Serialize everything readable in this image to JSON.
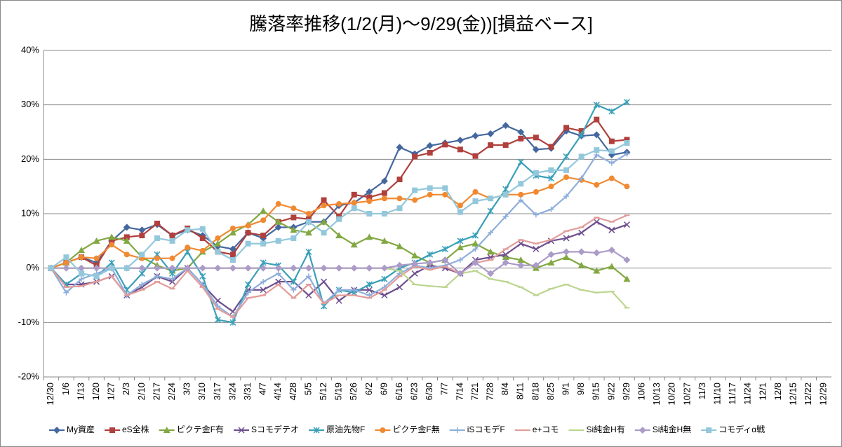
{
  "chart_data": {
    "type": "line",
    "title": "騰落率推移(1/2(月)～9/29(金))[損益ベース]",
    "categories": [
      "12/30",
      "1/6",
      "1/13",
      "1/20",
      "1/27",
      "2/3",
      "2/10",
      "2/17",
      "2/24",
      "3/3",
      "3/10",
      "3/17",
      "3/24",
      "3/31",
      "4/7",
      "4/14",
      "4/28",
      "5/5",
      "5/12",
      "5/19",
      "5/26",
      "6/2",
      "6/9",
      "6/16",
      "6/23",
      "6/30",
      "7/7",
      "7/14",
      "7/21",
      "7/28",
      "8/4",
      "8/11",
      "8/18",
      "8/25",
      "9/1",
      "9/8",
      "9/15",
      "9/22",
      "9/29",
      "10/6",
      "10/13",
      "10/20",
      "10/27",
      "11/3",
      "11/10",
      "11/17",
      "11/24",
      "12/1",
      "12/8",
      "12/15",
      "12/22",
      "12/29"
    ],
    "ylim": [
      -20,
      40
    ],
    "yticks": [
      {
        "value": -20,
        "label": "-20%"
      },
      {
        "value": -10,
        "label": "-10%"
      },
      {
        "value": 0,
        "label": "0%"
      },
      {
        "value": 10,
        "label": "10%"
      },
      {
        "value": 20,
        "label": "20%"
      },
      {
        "value": 30,
        "label": "30%"
      },
      {
        "value": 40,
        "label": "40%"
      }
    ],
    "grid": true,
    "legend": "bottom",
    "series": [
      {
        "name": "My資産",
        "color": "#44679e",
        "marker": "diamond",
        "values": [
          0,
          1,
          2,
          1,
          5,
          7.5,
          7,
          8,
          6,
          7,
          6,
          4,
          3.5,
          6.5,
          5.5,
          7.5,
          7.5,
          8.5,
          8.5,
          11.5,
          12,
          14,
          16,
          22.2,
          21,
          22.5,
          23,
          23.5,
          24.3,
          24.7,
          26.2,
          25,
          21.8,
          22,
          25.2,
          24.3,
          24.5,
          20.8,
          21.3,
          null,
          null,
          null,
          null,
          null,
          null,
          null,
          null,
          null,
          null,
          null,
          null,
          null
        ]
      },
      {
        "name": "eS全株",
        "color": "#b0403d",
        "marker": "square",
        "values": [
          0,
          1,
          2,
          0.5,
          5,
          5.7,
          6,
          8.2,
          6,
          7.3,
          5.5,
          3,
          2.5,
          6.5,
          6,
          8.5,
          9.3,
          9,
          12.5,
          9.5,
          13.5,
          13,
          13.8,
          16.3,
          20.5,
          21.2,
          22.7,
          21.8,
          20.6,
          22.6,
          22.6,
          23.8,
          24,
          22.3,
          25.8,
          25.2,
          27.3,
          23.3,
          23.6,
          null,
          null,
          null,
          null,
          null,
          null,
          null,
          null,
          null,
          null,
          null,
          null,
          null
        ]
      },
      {
        "name": "ピクテ金F有",
        "color": "#82a842",
        "marker": "triangle",
        "values": [
          0,
          1,
          3.3,
          5,
          5.7,
          5,
          2,
          0.5,
          -0.5,
          0,
          3,
          4.5,
          6.5,
          8,
          10.5,
          8.5,
          7,
          6.5,
          8.5,
          6,
          4.3,
          5.7,
          5,
          4,
          2.3,
          1,
          1.5,
          3.8,
          4.5,
          3,
          2,
          1.5,
          0,
          1,
          2,
          0.5,
          -0.5,
          0.3,
          -2,
          null,
          null,
          null,
          null,
          null,
          null,
          null,
          null,
          null,
          null,
          null,
          null,
          null
        ]
      },
      {
        "name": "Sコモデテオ",
        "color": "#6e4f8f",
        "marker": "x",
        "values": [
          0,
          -3,
          -3,
          -2.5,
          -1.5,
          -5,
          -3.5,
          -1.5,
          -2.5,
          0,
          -3,
          -6,
          -8,
          -4,
          -4,
          -2.5,
          -2.5,
          -5,
          -2.5,
          -6,
          -4,
          -4,
          -5,
          -3.5,
          -1,
          0.5,
          0,
          -1,
          1.5,
          2,
          2.5,
          4.5,
          3.5,
          5,
          5.5,
          6.5,
          8.5,
          7,
          8,
          null,
          null,
          null,
          null,
          null,
          null,
          null,
          null,
          null,
          null,
          null,
          null,
          null
        ]
      },
      {
        "name": "原油先物F",
        "color": "#3aa0b8",
        "marker": "star",
        "values": [
          0,
          -3,
          -1,
          -1.5,
          1,
          -4,
          -1,
          2.5,
          -1,
          3,
          -1.5,
          -9.5,
          -10,
          -3,
          1,
          0.5,
          -2.5,
          3,
          -7,
          -4,
          -4.5,
          -3,
          -2,
          0,
          1,
          2.5,
          3.5,
          5,
          6,
          10.5,
          14.5,
          19.5,
          17,
          16.5,
          20.5,
          24.5,
          30,
          28.8,
          30.5,
          null,
          null,
          null,
          null,
          null,
          null,
          null,
          null,
          null,
          null,
          null,
          null,
          null
        ]
      },
      {
        "name": "ピクテ金F無",
        "color": "#f08a32",
        "marker": "circle",
        "values": [
          0,
          1,
          2,
          1.8,
          4.3,
          2.5,
          1.8,
          1.8,
          1.8,
          3.8,
          3.2,
          5.5,
          7.3,
          7.8,
          8.8,
          11.8,
          11,
          10,
          11.5,
          11.8,
          12,
          12.3,
          12.8,
          12.8,
          12.5,
          13.5,
          13.5,
          11.5,
          14,
          12.8,
          13.5,
          13.5,
          14,
          15,
          16.7,
          16.2,
          15.3,
          16.5,
          15,
          null,
          null,
          null,
          null,
          null,
          null,
          null,
          null,
          null,
          null,
          null,
          null,
          null
        ]
      },
      {
        "name": "iSコモデF",
        "color": "#8eaedb",
        "marker": "plus",
        "values": [
          0,
          -4.5,
          -2,
          -1,
          0,
          -5,
          -3,
          -1.5,
          -2,
          0,
          -3,
          -7,
          -9,
          -4.5,
          -2.5,
          -1,
          -4,
          -1.5,
          -6.5,
          -4,
          -4,
          -5,
          -3.5,
          -1,
          0.5,
          0,
          0.5,
          1.5,
          3.5,
          6.5,
          9.5,
          12.5,
          9.8,
          10.8,
          13.2,
          16.5,
          20.8,
          19.3,
          21,
          null,
          null,
          null,
          null,
          null,
          null,
          null,
          null,
          null,
          null,
          null,
          null,
          null
        ]
      },
      {
        "name": "e+コモ",
        "color": "#e29c9a",
        "marker": "dash",
        "values": [
          0,
          -3.5,
          -3.3,
          -2.5,
          -1.5,
          -5,
          -4,
          -2.5,
          -3.8,
          -0.5,
          -3.5,
          -7.5,
          -9,
          -5.5,
          -5,
          -3,
          -5.5,
          -3,
          -6.5,
          -5,
          -5,
          -5.5,
          -4,
          -1.5,
          0.3,
          -0.3,
          0.3,
          -1,
          1,
          1.5,
          3.5,
          5.2,
          4.5,
          5.2,
          6.8,
          7.5,
          9.3,
          8.5,
          9.7,
          null,
          null,
          null,
          null,
          null,
          null,
          null,
          null,
          null,
          null,
          null,
          null,
          null
        ]
      },
      {
        "name": "Si純金H有",
        "color": "#bcd590",
        "marker": "dash",
        "values": [
          0,
          0,
          0,
          0,
          0,
          0,
          0,
          0,
          0,
          0,
          0,
          0,
          0,
          0,
          0,
          0,
          0,
          0,
          0,
          0,
          0,
          0,
          0,
          -0.5,
          -3,
          -3.3,
          -3.5,
          -1,
          -0.5,
          -2,
          -2.5,
          -3.5,
          -5,
          -3.8,
          -3,
          -4,
          -4.5,
          -4.3,
          -7.3,
          null,
          null,
          null,
          null,
          null,
          null,
          null,
          null,
          null,
          null,
          null,
          null,
          null
        ]
      },
      {
        "name": "Si純金H無",
        "color": "#ab9bc8",
        "marker": "diamond",
        "values": [
          0,
          0,
          0,
          0,
          0,
          0,
          0,
          0,
          0,
          0,
          0,
          0,
          0,
          0,
          0,
          0,
          0,
          0,
          0,
          0,
          0,
          0,
          0,
          0.5,
          0.8,
          1,
          1.5,
          -1,
          1,
          -1,
          1,
          0.5,
          0.5,
          2.5,
          3,
          3,
          2.8,
          3.3,
          1.5,
          null,
          null,
          null,
          null,
          null,
          null,
          null,
          null,
          null,
          null,
          null,
          null,
          null
        ]
      },
      {
        "name": "コモディα戦",
        "color": "#93c8dc",
        "marker": "square",
        "values": [
          0,
          2,
          -1,
          -1.5,
          0,
          0,
          2.5,
          5.5,
          5,
          7,
          7.2,
          3,
          1.5,
          4.5,
          4.5,
          5,
          5.5,
          8.5,
          6.5,
          9,
          11,
          10,
          10,
          11,
          14.3,
          14.7,
          14.7,
          10.3,
          12.3,
          12.8,
          13.5,
          15.5,
          17.5,
          18,
          18,
          20.5,
          21.7,
          21.5,
          23,
          null,
          null,
          null,
          null,
          null,
          null,
          null,
          null,
          null,
          null,
          null,
          null,
          null
        ]
      }
    ]
  }
}
